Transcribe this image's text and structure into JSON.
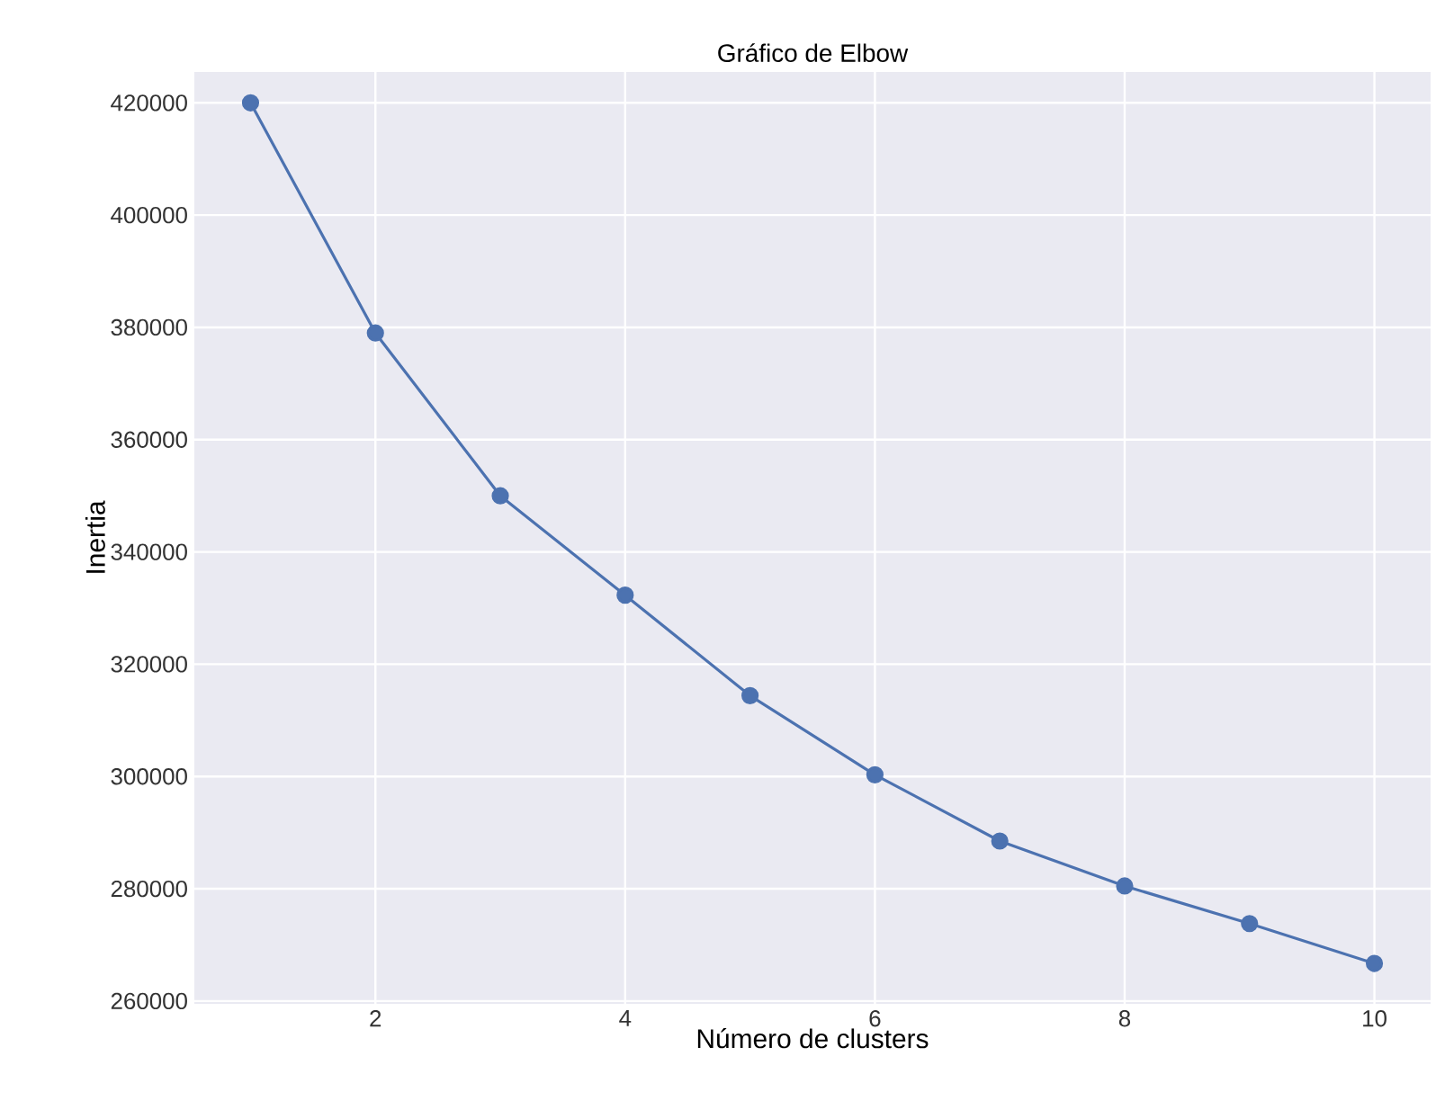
{
  "chart_data": {
    "type": "line",
    "title": "Gráfico de Elbow",
    "xlabel": "Número de clusters",
    "ylabel": "Inertia",
    "x": [
      1,
      2,
      3,
      4,
      5,
      6,
      7,
      8,
      9,
      10
    ],
    "series": [
      {
        "color": "#4c72b0",
        "values": [
          420000,
          379000,
          350000,
          332300,
          314400,
          300300,
          288500,
          280500,
          273800,
          266700
        ]
      }
    ],
    "xlim": [
      0.55,
      10.45
    ],
    "ylim": [
      259500,
      425500
    ],
    "xticks": [
      2,
      4,
      6,
      8,
      10
    ],
    "yticks": [
      260000,
      280000,
      300000,
      320000,
      340000,
      360000,
      380000,
      400000,
      420000
    ],
    "grid": true,
    "marker": "circle",
    "line_style": "solid"
  }
}
